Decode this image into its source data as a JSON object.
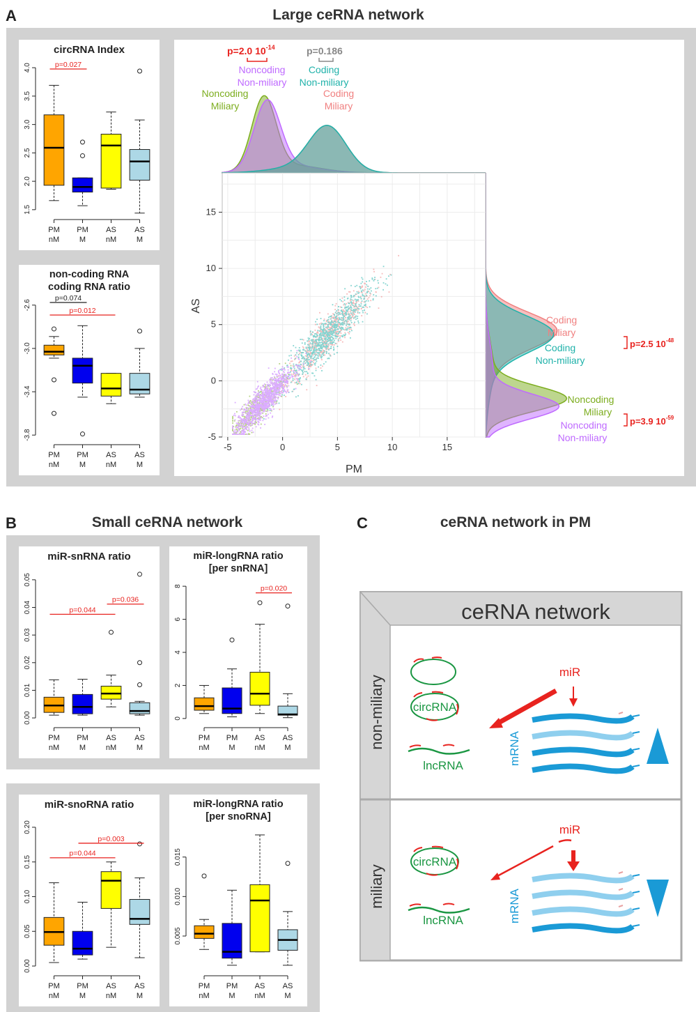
{
  "labels": {
    "A": "A",
    "B": "B",
    "C": "C",
    "titleA": "Large ceRNA network",
    "titleB": "Small ceRNA network",
    "titleC": "ceRNA network in PM"
  },
  "colors": {
    "PMnM": "#ffa500",
    "PMM": "#0000ee",
    "ASnM": "#ffff00",
    "ASM": "#add8e6",
    "sig": "#e8231f",
    "coding_miliary": "#f08080",
    "coding_nonmiliary": "#20b2aa",
    "noncoding_miliary": "#7cad1e",
    "noncoding_nonmiliary": "#bf6aff",
    "green": "#1a9642",
    "blue": "#1a9ad6",
    "lightblue": "#8fcfee"
  },
  "chart_data": [
    {
      "type": "box",
      "id": "circ",
      "title": "circRNA Index",
      "categories": [
        "PM nM",
        "PM M",
        "AS nM",
        "AS M"
      ],
      "tick_line1": [
        "PM",
        "PM",
        "AS",
        "AS"
      ],
      "tick_line2": [
        "nM",
        "M",
        "nM",
        "M"
      ],
      "ylim": [
        1.4,
        4.1
      ],
      "yticks": [
        1.5,
        2.0,
        2.5,
        3.0,
        3.5,
        4.0
      ],
      "ytick_labels": [
        "1.5",
        "2.0",
        "2.5",
        "3.0",
        "3.5",
        "4.0"
      ],
      "boxes": [
        {
          "wlo": 1.66,
          "q1": 1.93,
          "med": 2.59,
          "q3": 3.17,
          "whi": 3.69,
          "out": []
        },
        {
          "wlo": 1.57,
          "q1": 1.81,
          "med": 1.9,
          "q3": 2.06,
          "whi": 2.06,
          "out": [
            2.45,
            2.69
          ]
        },
        {
          "wlo": 1.86,
          "q1": 1.88,
          "med": 2.63,
          "q3": 2.83,
          "whi": 3.22,
          "out": []
        },
        {
          "wlo": 1.44,
          "q1": 2.02,
          "med": 2.35,
          "q3": 2.56,
          "whi": 3.08,
          "out": [
            3.94
          ]
        }
      ],
      "pvals": [
        {
          "text": "p=0.027",
          "from": 0,
          "to": 1,
          "color": "#e8231f",
          "level": 0
        }
      ]
    },
    {
      "type": "box",
      "id": "ratio",
      "title": "non-coding RNA coding RNA ratio",
      "title_lines": [
        "non-coding RNA",
        "coding RNA ratio"
      ],
      "categories": [
        "PM nM",
        "PM M",
        "AS nM",
        "AS M"
      ],
      "tick_line1": [
        "PM",
        "PM",
        "AS",
        "AS"
      ],
      "tick_line2": [
        "nM",
        "M",
        "nM",
        "M"
      ],
      "ylim": [
        -3.85,
        -2.55
      ],
      "yticks": [
        -3.8,
        -3.4,
        -3.0,
        -2.6
      ],
      "ytick_labels": [
        "-3.8",
        "-3.4",
        "-3.0",
        "-2.6"
      ],
      "boxes": [
        {
          "wlo": -3.09,
          "q1": -3.06,
          "med": -3.03,
          "q3": -2.97,
          "whi": -2.89,
          "out": [
            -2.82,
            -3.29,
            -3.6
          ]
        },
        {
          "wlo": -3.45,
          "q1": -3.32,
          "med": -3.16,
          "q3": -3.09,
          "whi": -2.79,
          "out": [
            -3.79
          ]
        },
        {
          "wlo": -3.51,
          "q1": -3.44,
          "med": -3.37,
          "q3": -3.23,
          "whi": -3.23,
          "out": []
        },
        {
          "wlo": -3.45,
          "q1": -3.42,
          "med": -3.38,
          "q3": -3.23,
          "whi": -3.0,
          "out": [
            -2.84
          ]
        }
      ],
      "pvals": [
        {
          "text": "p=0.074",
          "from": 0,
          "to": 1,
          "color": "#222222",
          "level": 1
        },
        {
          "text": "p=0.012",
          "from": 0,
          "to": 2,
          "color": "#e8231f",
          "level": 0
        }
      ]
    },
    {
      "type": "scatter_density",
      "id": "large",
      "xlabel": "PM",
      "ylabel": "AS",
      "xlim": [
        -5.5,
        18.5
      ],
      "ylim": [
        -5,
        18.5
      ],
      "xticks": [
        -5,
        0,
        5,
        10,
        15
      ],
      "yticks": [
        -5,
        0,
        5,
        10,
        15
      ],
      "tick_labels_x": [
        "-5",
        "0",
        "5",
        "10",
        "15"
      ],
      "tick_labels_y": [
        "-5",
        "0",
        "5",
        "10",
        "15"
      ],
      "top_density_peaks": [
        {
          "name": "Noncoding Miliary",
          "center": -1.7,
          "width": 1.1,
          "height": 1.0
        },
        {
          "name": "Noncoding Non-miliary",
          "center": -1.4,
          "width": 1.2,
          "height": 0.94
        },
        {
          "name": "Coding Miliary",
          "center": 4.1,
          "width": 1.7,
          "height": 0.62
        },
        {
          "name": "Coding Non-miliary",
          "center": 4.1,
          "width": 1.7,
          "height": 0.62
        }
      ],
      "right_density_peaks": [
        {
          "name": "Coding Miliary",
          "center": 4.5,
          "width": 1.6,
          "height": 0.9
        },
        {
          "name": "Coding Non-miliary",
          "center": 4.2,
          "width": 1.6,
          "height": 0.85
        },
        {
          "name": "Noncoding Miliary",
          "center": -1.6,
          "width": 1.1,
          "height": 1.0
        },
        {
          "name": "Noncoding Non-miliary",
          "center": -2.3,
          "width": 1.1,
          "height": 0.92
        }
      ],
      "legend_top": {
        "noncoding_nonmiliary": [
          "Noncoding",
          "Non-miliary"
        ],
        "coding_nonmiliary": [
          "Coding",
          "Non-miliary"
        ],
        "noncoding_miliary": [
          "Noncoding",
          "Miliary"
        ],
        "coding_miliary": [
          "Coding",
          "Miliary"
        ]
      },
      "legend_right": {
        "coding_miliary": [
          "Coding",
          "Miliary"
        ],
        "coding_nonmiliary": [
          "Coding",
          "Non-miliary"
        ],
        "noncoding_miliary": [
          "Noncoding",
          "Miliary"
        ],
        "noncoding_nonmiliary": [
          "Noncoding",
          "Non-miliary"
        ]
      },
      "pval_top_left": {
        "base": "p=2.0 10",
        "exp": "-14"
      },
      "pval_top_right": "p=0.186",
      "pval_right_top": {
        "base": "p=2.5 10",
        "exp": "-48"
      },
      "pval_right_bottom": {
        "base": "p=3.9 10",
        "exp": "-59"
      }
    },
    {
      "type": "box",
      "id": "snRNA",
      "title": "miR-snRNA ratio",
      "categories": [
        "PM nM",
        "PM M",
        "AS nM",
        "AS M"
      ],
      "tick_line1": [
        "PM",
        "PM",
        "AS",
        "AS"
      ],
      "tick_line2": [
        "nM",
        "M",
        "nM",
        "M"
      ],
      "ylim": [
        -0.002,
        0.054
      ],
      "yticks": [
        0.0,
        0.01,
        0.02,
        0.03,
        0.04,
        0.05
      ],
      "ytick_labels": [
        "0.00",
        "0.01",
        "0.02",
        "0.03",
        "0.04",
        "0.05"
      ],
      "boxes": [
        {
          "wlo": 0.001,
          "q1": 0.002,
          "med": 0.0045,
          "q3": 0.0075,
          "whi": 0.0138,
          "out": []
        },
        {
          "wlo": 0.001,
          "q1": 0.0015,
          "med": 0.004,
          "q3": 0.0085,
          "whi": 0.014,
          "out": []
        },
        {
          "wlo": 0.004,
          "q1": 0.0068,
          "med": 0.0088,
          "q3": 0.0115,
          "whi": 0.0155,
          "out": [
            0.031
          ]
        },
        {
          "wlo": 0.001,
          "q1": 0.0015,
          "med": 0.0025,
          "q3": 0.0055,
          "whi": 0.006,
          "out": [
            0.012,
            0.02,
            0.052
          ]
        }
      ],
      "pvals": [
        {
          "text": "p=0.044",
          "from": 0,
          "to": 2,
          "color": "#e8231f",
          "level": 0
        },
        {
          "text": "p=0.036",
          "from": 2,
          "to": 3,
          "color": "#e8231f",
          "level": 1
        }
      ]
    },
    {
      "type": "box",
      "id": "longsn",
      "title": "miR-longRNA ratio [per snRNA]",
      "title_lines": [
        "miR-longRNA ratio",
        "[per snRNA]"
      ],
      "categories": [
        "PM nM",
        "PM M",
        "AS nM",
        "AS M"
      ],
      "tick_line1": [
        "PM",
        "PM",
        "AS",
        "AS"
      ],
      "tick_line2": [
        "nM",
        "M",
        "nM",
        "M"
      ],
      "ylim": [
        -0.3,
        8.3
      ],
      "yticks": [
        0,
        2,
        4,
        6,
        8
      ],
      "ytick_labels": [
        "0",
        "2",
        "4",
        "6",
        "8"
      ],
      "boxes": [
        {
          "wlo": 0.3,
          "q1": 0.5,
          "med": 0.75,
          "q3": 1.25,
          "whi": 2.0,
          "out": []
        },
        {
          "wlo": 0.1,
          "q1": 0.3,
          "med": 0.6,
          "q3": 1.85,
          "whi": 3.0,
          "out": [
            4.75
          ]
        },
        {
          "wlo": 0.3,
          "q1": 0.8,
          "med": 1.5,
          "q3": 2.8,
          "whi": 5.7,
          "out": [
            7.0
          ]
        },
        {
          "wlo": 0.05,
          "q1": 0.2,
          "med": 0.25,
          "q3": 0.75,
          "whi": 1.5,
          "out": [
            6.8
          ]
        }
      ],
      "pvals": [
        {
          "text": "p=0.020",
          "from": 2,
          "to": 3,
          "color": "#e8231f",
          "level": 0
        }
      ]
    },
    {
      "type": "box",
      "id": "snoRNA",
      "title": "miR-snoRNA ratio",
      "categories": [
        "PM nM",
        "PM M",
        "AS nM",
        "AS M"
      ],
      "tick_line1": [
        "PM",
        "PM",
        "AS",
        "AS"
      ],
      "tick_line2": [
        "nM",
        "M",
        "nM",
        "M"
      ],
      "ylim": [
        -0.008,
        0.215
      ],
      "yticks": [
        0.0,
        0.05,
        0.1,
        0.15,
        0.2
      ],
      "ytick_labels": [
        "0.00",
        "0.05",
        "0.10",
        "0.15",
        "0.20"
      ],
      "boxes": [
        {
          "wlo": 0.005,
          "q1": 0.03,
          "med": 0.049,
          "q3": 0.07,
          "whi": 0.12,
          "out": []
        },
        {
          "wlo": 0.01,
          "q1": 0.016,
          "med": 0.025,
          "q3": 0.05,
          "whi": 0.092,
          "out": []
        },
        {
          "wlo": 0.027,
          "q1": 0.083,
          "med": 0.123,
          "q3": 0.136,
          "whi": 0.15,
          "out": []
        },
        {
          "wlo": 0.012,
          "q1": 0.06,
          "med": 0.068,
          "q3": 0.096,
          "whi": 0.127,
          "out": [
            0.176
          ]
        }
      ],
      "pvals": [
        {
          "text": "p=0.044",
          "from": 0,
          "to": 2,
          "color": "#e8231f",
          "level": 0
        },
        {
          "text": "p=0.003",
          "from": 1,
          "to": 3,
          "color": "#e8231f",
          "level": 1
        }
      ]
    },
    {
      "type": "box",
      "id": "longsno",
      "title": "miR-longRNA ratio [per snoRNA]",
      "title_lines": [
        "miR-longRNA ratio",
        "[per snoRNA]"
      ],
      "categories": [
        "PM nM",
        "PM M",
        "AS nM",
        "AS M"
      ],
      "tick_line1": [
        "PM",
        "PM",
        "AS",
        "AS"
      ],
      "tick_line2": [
        "nM",
        "M",
        "nM",
        "M"
      ],
      "ylim": [
        0.0005,
        0.0185
      ],
      "yticks": [
        0.005,
        0.01,
        0.015
      ],
      "ytick_labels": [
        "0.005",
        "0.010",
        "0.015"
      ],
      "boxes": [
        {
          "wlo": 0.0033,
          "q1": 0.0047,
          "med": 0.0053,
          "q3": 0.0063,
          "whi": 0.0071,
          "out": [
            0.0126
          ]
        },
        {
          "wlo": 0.0013,
          "q1": 0.0022,
          "med": 0.003,
          "q3": 0.0066,
          "whi": 0.0108,
          "out": []
        },
        {
          "wlo": 0.003,
          "q1": 0.003,
          "med": 0.0095,
          "q3": 0.0115,
          "whi": 0.0178,
          "out": []
        },
        {
          "wlo": 0.0013,
          "q1": 0.0032,
          "med": 0.0045,
          "q3": 0.0058,
          "whi": 0.0081,
          "out": [
            0.0142
          ]
        }
      ],
      "pvals": []
    }
  ],
  "diagram": {
    "header": "ceRNA network",
    "row1_label": "non-miliary",
    "row2_label": "miliary",
    "circRNA": "circRNA",
    "lncRNA": "lncRNA",
    "miR": "miR",
    "mRNA": "mRNA",
    "arrow_up": "increased",
    "arrow_down": "decreased"
  }
}
